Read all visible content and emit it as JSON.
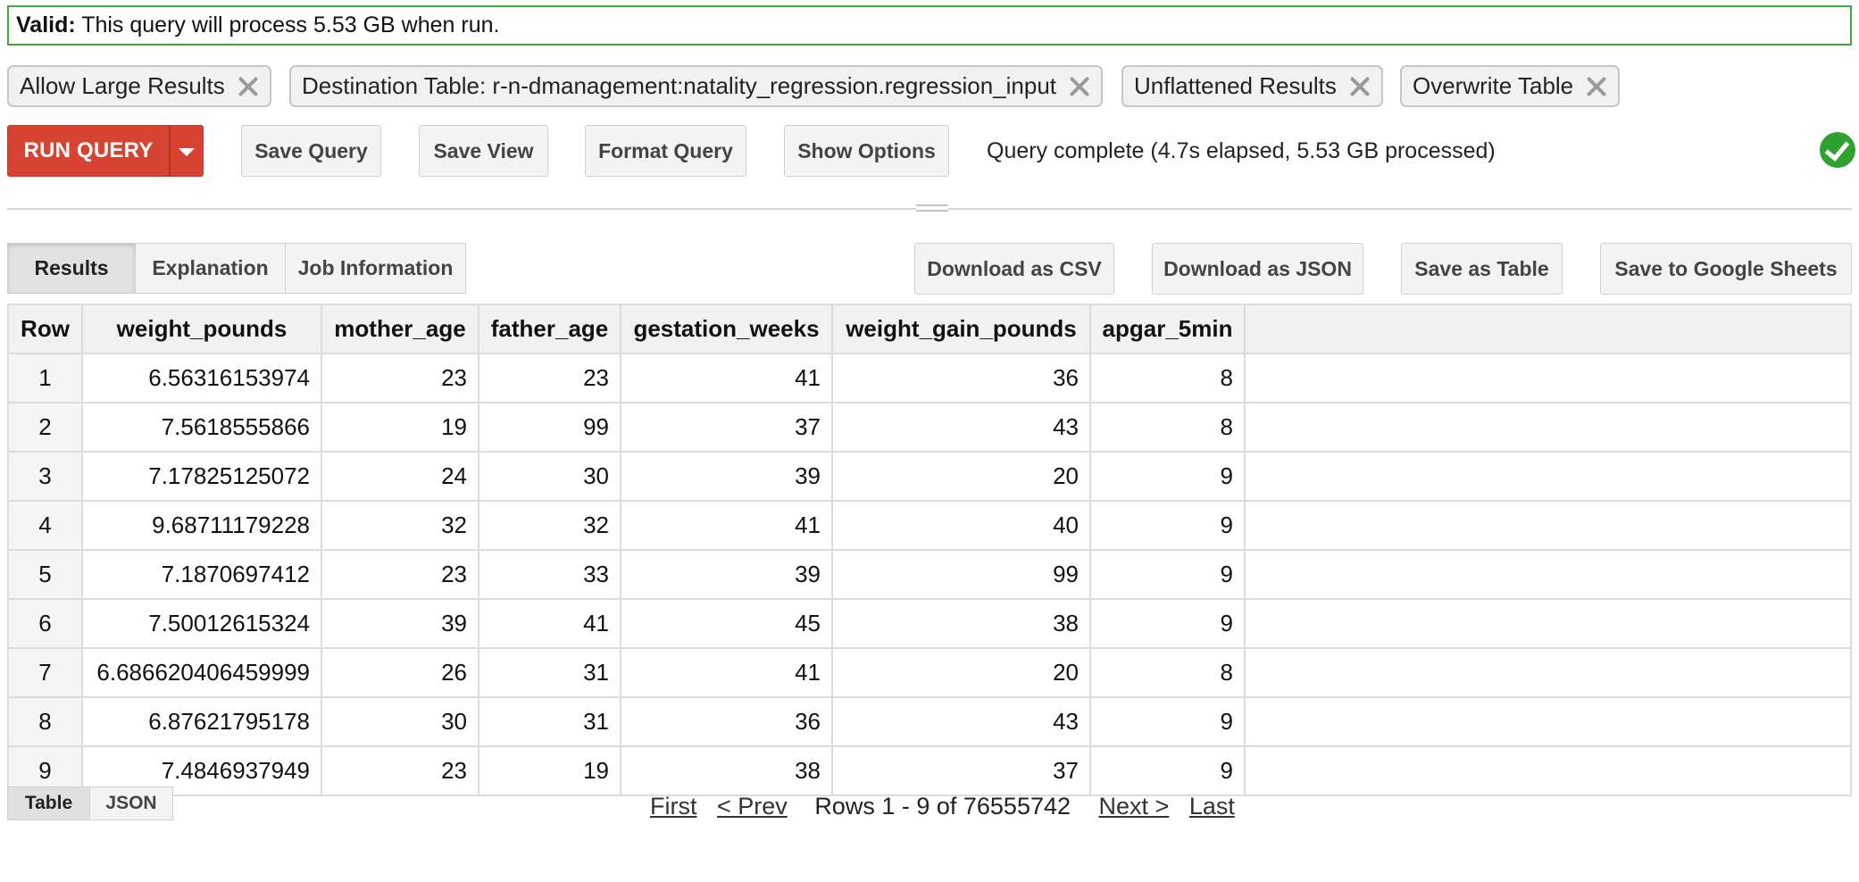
{
  "validation": {
    "label": "Valid:",
    "message": "This query will process 5.53 GB when run."
  },
  "option_chips": [
    {
      "label": "Allow Large Results"
    },
    {
      "label": "Destination Table: r-n-dmanagement:natality_regression.regression_input"
    },
    {
      "label": "Unflattened Results"
    },
    {
      "label": "Overwrite Table"
    }
  ],
  "toolbar": {
    "run_label": "RUN QUERY",
    "save_query": "Save Query",
    "save_view": "Save View",
    "format_query": "Format Query",
    "show_options": "Show Options",
    "status": "Query complete (4.7s elapsed, 5.53 GB processed)"
  },
  "result_tabs": [
    {
      "label": "Results",
      "active": true
    },
    {
      "label": "Explanation",
      "active": false
    },
    {
      "label": "Job Information",
      "active": false
    }
  ],
  "export_actions": {
    "csv": "Download as CSV",
    "json": "Download as JSON",
    "table": "Save as Table",
    "sheets": "Save to Google Sheets"
  },
  "table": {
    "columns": [
      "Row",
      "weight_pounds",
      "mother_age",
      "father_age",
      "gestation_weeks",
      "weight_gain_pounds",
      "apgar_5min"
    ],
    "rows": [
      [
        "1",
        "6.56316153974",
        "23",
        "23",
        "41",
        "36",
        "8"
      ],
      [
        "2",
        "7.5618555866",
        "19",
        "99",
        "37",
        "43",
        "8"
      ],
      [
        "3",
        "7.17825125072",
        "24",
        "30",
        "39",
        "20",
        "9"
      ],
      [
        "4",
        "9.68711179228",
        "32",
        "32",
        "41",
        "40",
        "9"
      ],
      [
        "5",
        "7.1870697412",
        "23",
        "33",
        "39",
        "99",
        "9"
      ],
      [
        "6",
        "7.50012615324",
        "39",
        "41",
        "45",
        "38",
        "9"
      ],
      [
        "7",
        "6.686620406459999",
        "26",
        "31",
        "41",
        "20",
        "8"
      ],
      [
        "8",
        "6.87621795178",
        "30",
        "31",
        "36",
        "43",
        "9"
      ],
      [
        "9",
        "7.4846937949",
        "23",
        "19",
        "38",
        "37",
        "9"
      ]
    ]
  },
  "view_toggle": {
    "table": "Table",
    "json": "JSON",
    "active": "table"
  },
  "pagination": {
    "first": "First",
    "prev": "< Prev",
    "info": "Rows 1 - 9 of 76555742",
    "next": "Next >",
    "last": "Last"
  },
  "colors": {
    "valid_border": "#3fa83f",
    "run_button": "#d74332",
    "success_icon": "#2fa12f"
  },
  "icons": [
    "close-icon",
    "dropdown-caret-icon",
    "success-check-icon",
    "drag-handle-icon"
  ]
}
